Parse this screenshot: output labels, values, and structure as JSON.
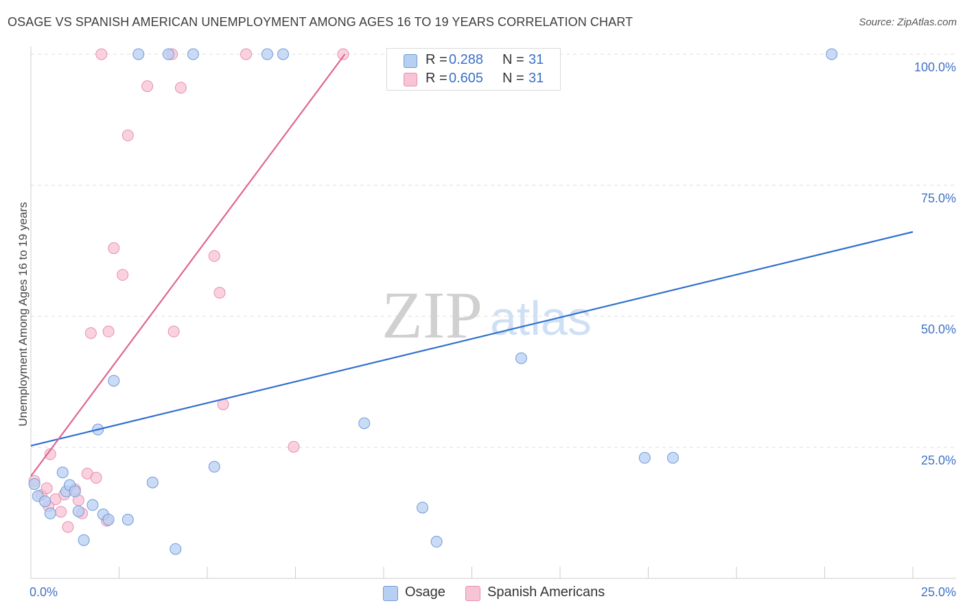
{
  "header": {
    "title": "OSAGE VS SPANISH AMERICAN UNEMPLOYMENT AMONG AGES 16 TO 19 YEARS CORRELATION CHART",
    "source": "Source: ZipAtlas.com"
  },
  "watermark": {
    "zip": "ZIP",
    "atlas": "atlas"
  },
  "legend": {
    "r_label": "R =",
    "n_label": "N =",
    "series": [
      {
        "r": "0.288",
        "n": "31"
      },
      {
        "r": "0.605",
        "n": "31"
      }
    ]
  },
  "chart_data": {
    "type": "scatter",
    "title": "OSAGE VS SPANISH AMERICAN UNEMPLOYMENT AMONG AGES 16 TO 19 YEARS CORRELATION CHART",
    "xlabel": "",
    "ylabel": "Unemployment Among Ages 16 to 19 years",
    "xlim": [
      0,
      25
    ],
    "ylim": [
      0,
      103
    ],
    "x_tick_labels": [
      "0.0%",
      "25.0%"
    ],
    "y_ticks": [
      25,
      50,
      75,
      100
    ],
    "y_tick_labels": [
      "25.0%",
      "50.0%",
      "75.0%",
      "100.0%"
    ],
    "grid": true,
    "colors": {
      "osage_fill": "#b7cff2",
      "osage_stroke": "#6f9ad9",
      "osage_line": "#2f6fcf",
      "spanish_fill": "#f8c3d4",
      "spanish_stroke": "#e68fae",
      "spanish_line": "#e0648e",
      "tick_label": "#3f72c6",
      "grid": "#dcdcdc",
      "axis": "#cccccc"
    },
    "series": [
      {
        "name": "Osage",
        "trendline": {
          "x0": 0,
          "y0": 25.3,
          "x1": 25,
          "y1": 66.1
        },
        "points": [
          [
            0.1,
            18.0
          ],
          [
            0.2,
            15.7
          ],
          [
            0.4,
            14.7
          ],
          [
            0.55,
            12.4
          ],
          [
            0.9,
            20.2
          ],
          [
            1.0,
            16.6
          ],
          [
            1.1,
            17.8
          ],
          [
            1.25,
            16.6
          ],
          [
            1.35,
            12.8
          ],
          [
            1.5,
            7.3
          ],
          [
            1.75,
            14.0
          ],
          [
            1.9,
            28.4
          ],
          [
            2.05,
            12.2
          ],
          [
            2.2,
            11.2
          ],
          [
            2.35,
            37.7
          ],
          [
            2.75,
            11.2
          ],
          [
            3.05,
            100
          ],
          [
            3.45,
            18.3
          ],
          [
            3.9,
            100
          ],
          [
            4.1,
            5.6
          ],
          [
            4.6,
            100
          ],
          [
            5.2,
            21.3
          ],
          [
            6.7,
            100
          ],
          [
            7.15,
            100
          ],
          [
            9.45,
            29.6
          ],
          [
            11.1,
            13.5
          ],
          [
            11.5,
            7.0
          ],
          [
            13.9,
            42.0
          ],
          [
            17.4,
            23.0
          ],
          [
            18.2,
            23.0
          ],
          [
            22.7,
            100
          ]
        ]
      },
      {
        "name": "Spanish Americans",
        "trendline": {
          "x0": 0,
          "y0": 19.5,
          "x1": 8.9,
          "y1": 100
        },
        "points": [
          [
            0.1,
            18.6
          ],
          [
            0.3,
            15.9
          ],
          [
            0.45,
            17.2
          ],
          [
            0.5,
            13.8
          ],
          [
            0.55,
            23.7
          ],
          [
            0.7,
            15.1
          ],
          [
            0.85,
            12.7
          ],
          [
            0.95,
            16.0
          ],
          [
            1.05,
            9.8
          ],
          [
            1.25,
            17.0
          ],
          [
            1.35,
            14.9
          ],
          [
            1.45,
            12.4
          ],
          [
            1.6,
            20.0
          ],
          [
            1.7,
            46.8
          ],
          [
            1.85,
            19.2
          ],
          [
            2.0,
            100
          ],
          [
            2.15,
            11.0
          ],
          [
            2.2,
            47.1
          ],
          [
            2.35,
            63.0
          ],
          [
            2.6,
            57.9
          ],
          [
            2.75,
            84.5
          ],
          [
            3.3,
            93.9
          ],
          [
            4.0,
            100
          ],
          [
            4.05,
            47.1
          ],
          [
            4.25,
            93.6
          ],
          [
            5.2,
            61.5
          ],
          [
            5.35,
            54.5
          ],
          [
            5.45,
            33.2
          ],
          [
            6.1,
            100
          ],
          [
            7.45,
            25.1
          ],
          [
            8.85,
            100
          ]
        ]
      }
    ]
  }
}
